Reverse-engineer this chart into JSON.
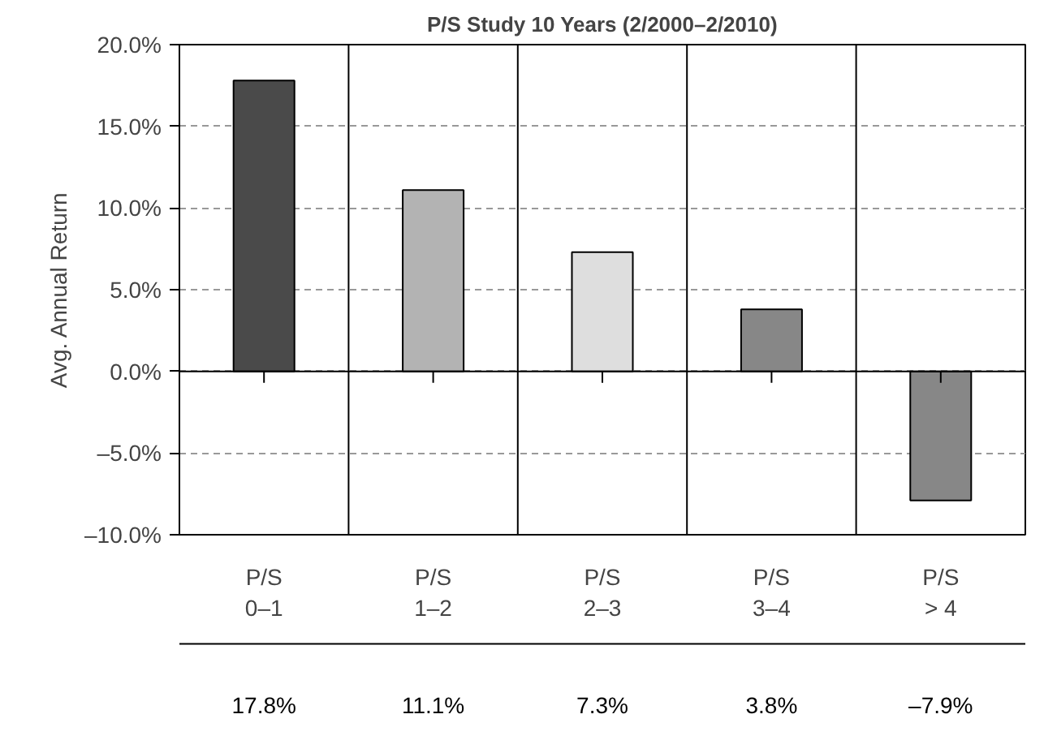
{
  "chart_data": {
    "type": "bar",
    "title": "P/S Study 10 Years (2/2000–2/2010)",
    "ylabel": "Avg. Annual Return",
    "categories": [
      "P/S\n0–1",
      "P/S\n1–2",
      "P/S\n2–3",
      "P/S\n3–4",
      "P/S\n> 4"
    ],
    "values": [
      17.8,
      11.1,
      7.3,
      3.8,
      -7.9
    ],
    "colors": [
      "#4a4a4a",
      "#b3b3b3",
      "#dedede",
      "#878787",
      "#878787"
    ],
    "value_labels": [
      "17.8%",
      "11.1%",
      "7.3%",
      "3.8%",
      "–7.9%"
    ],
    "ylim": [
      -10,
      20
    ],
    "yticks": [
      {
        "value": -10,
        "label": "–10.0%"
      },
      {
        "value": -5,
        "label": "–5.0%"
      },
      {
        "value": 0,
        "label": "0.0%"
      },
      {
        "value": 5,
        "label": "5.0%"
      },
      {
        "value": 10,
        "label": "10.0%"
      },
      {
        "value": 15,
        "label": "15.0%"
      },
      {
        "value": 20,
        "label": "20.0%"
      }
    ],
    "grid": "y"
  }
}
